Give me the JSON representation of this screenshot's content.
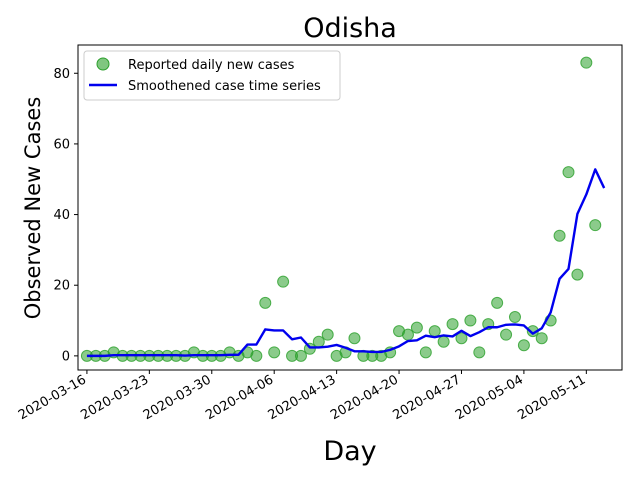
{
  "chart_data": {
    "type": "scatter",
    "title": "Odisha",
    "xlabel": "Day",
    "ylabel": "Observed New Cases",
    "xlim": [
      "2020-03-15",
      "2020-05-15"
    ],
    "ylim": [
      -4,
      88
    ],
    "yticks": [
      0,
      20,
      40,
      60,
      80
    ],
    "xticks": [
      "2020-03-16",
      "2020-03-23",
      "2020-03-30",
      "2020-04-06",
      "2020-04-13",
      "2020-04-20",
      "2020-04-27",
      "2020-05-04",
      "2020-05-11"
    ],
    "grid": false,
    "legend_position": "top-left",
    "start_date": "2020-03-16",
    "series": [
      {
        "name": "Reported daily new cases",
        "kind": "scatter",
        "color": "#2ca02c",
        "values": [
          0,
          0,
          0,
          1,
          0,
          0,
          0,
          0,
          0,
          0,
          0,
          0,
          1,
          0,
          0,
          0,
          1,
          0,
          1,
          0,
          15,
          1,
          21,
          0,
          0,
          2,
          4,
          6,
          0,
          1,
          5,
          0,
          0,
          0,
          1,
          7,
          6,
          8,
          1,
          7,
          4,
          9,
          5,
          10,
          1,
          9,
          15,
          6,
          11,
          3,
          7,
          5,
          10,
          34,
          52,
          23,
          83,
          37
        ]
      },
      {
        "name": "Smoothened case time series",
        "kind": "line",
        "color": "#0000ee",
        "values": [
          0,
          0,
          0,
          0.2,
          0.2,
          0.2,
          0.2,
          0.2,
          0.2,
          0.2,
          0.2,
          0.1,
          0.2,
          0.2,
          0.2,
          0.2,
          0.3,
          0.3,
          3.2,
          3.2,
          7.5,
          7.2,
          7.2,
          4.7,
          5.2,
          2.4,
          2.4,
          2.6,
          3.1,
          2.3,
          1.3,
          1.3,
          1.1,
          1.1,
          1.7,
          2.7,
          4.2,
          4.4,
          5.7,
          5.3,
          5.8,
          5.5,
          7.1,
          5.6,
          6.7,
          8.1,
          8.1,
          8.8,
          8.9,
          8.6,
          6.3,
          7.8,
          12.3,
          21.8,
          24.6,
          40.2,
          45.7,
          52.8,
          47.5
        ]
      }
    ]
  }
}
